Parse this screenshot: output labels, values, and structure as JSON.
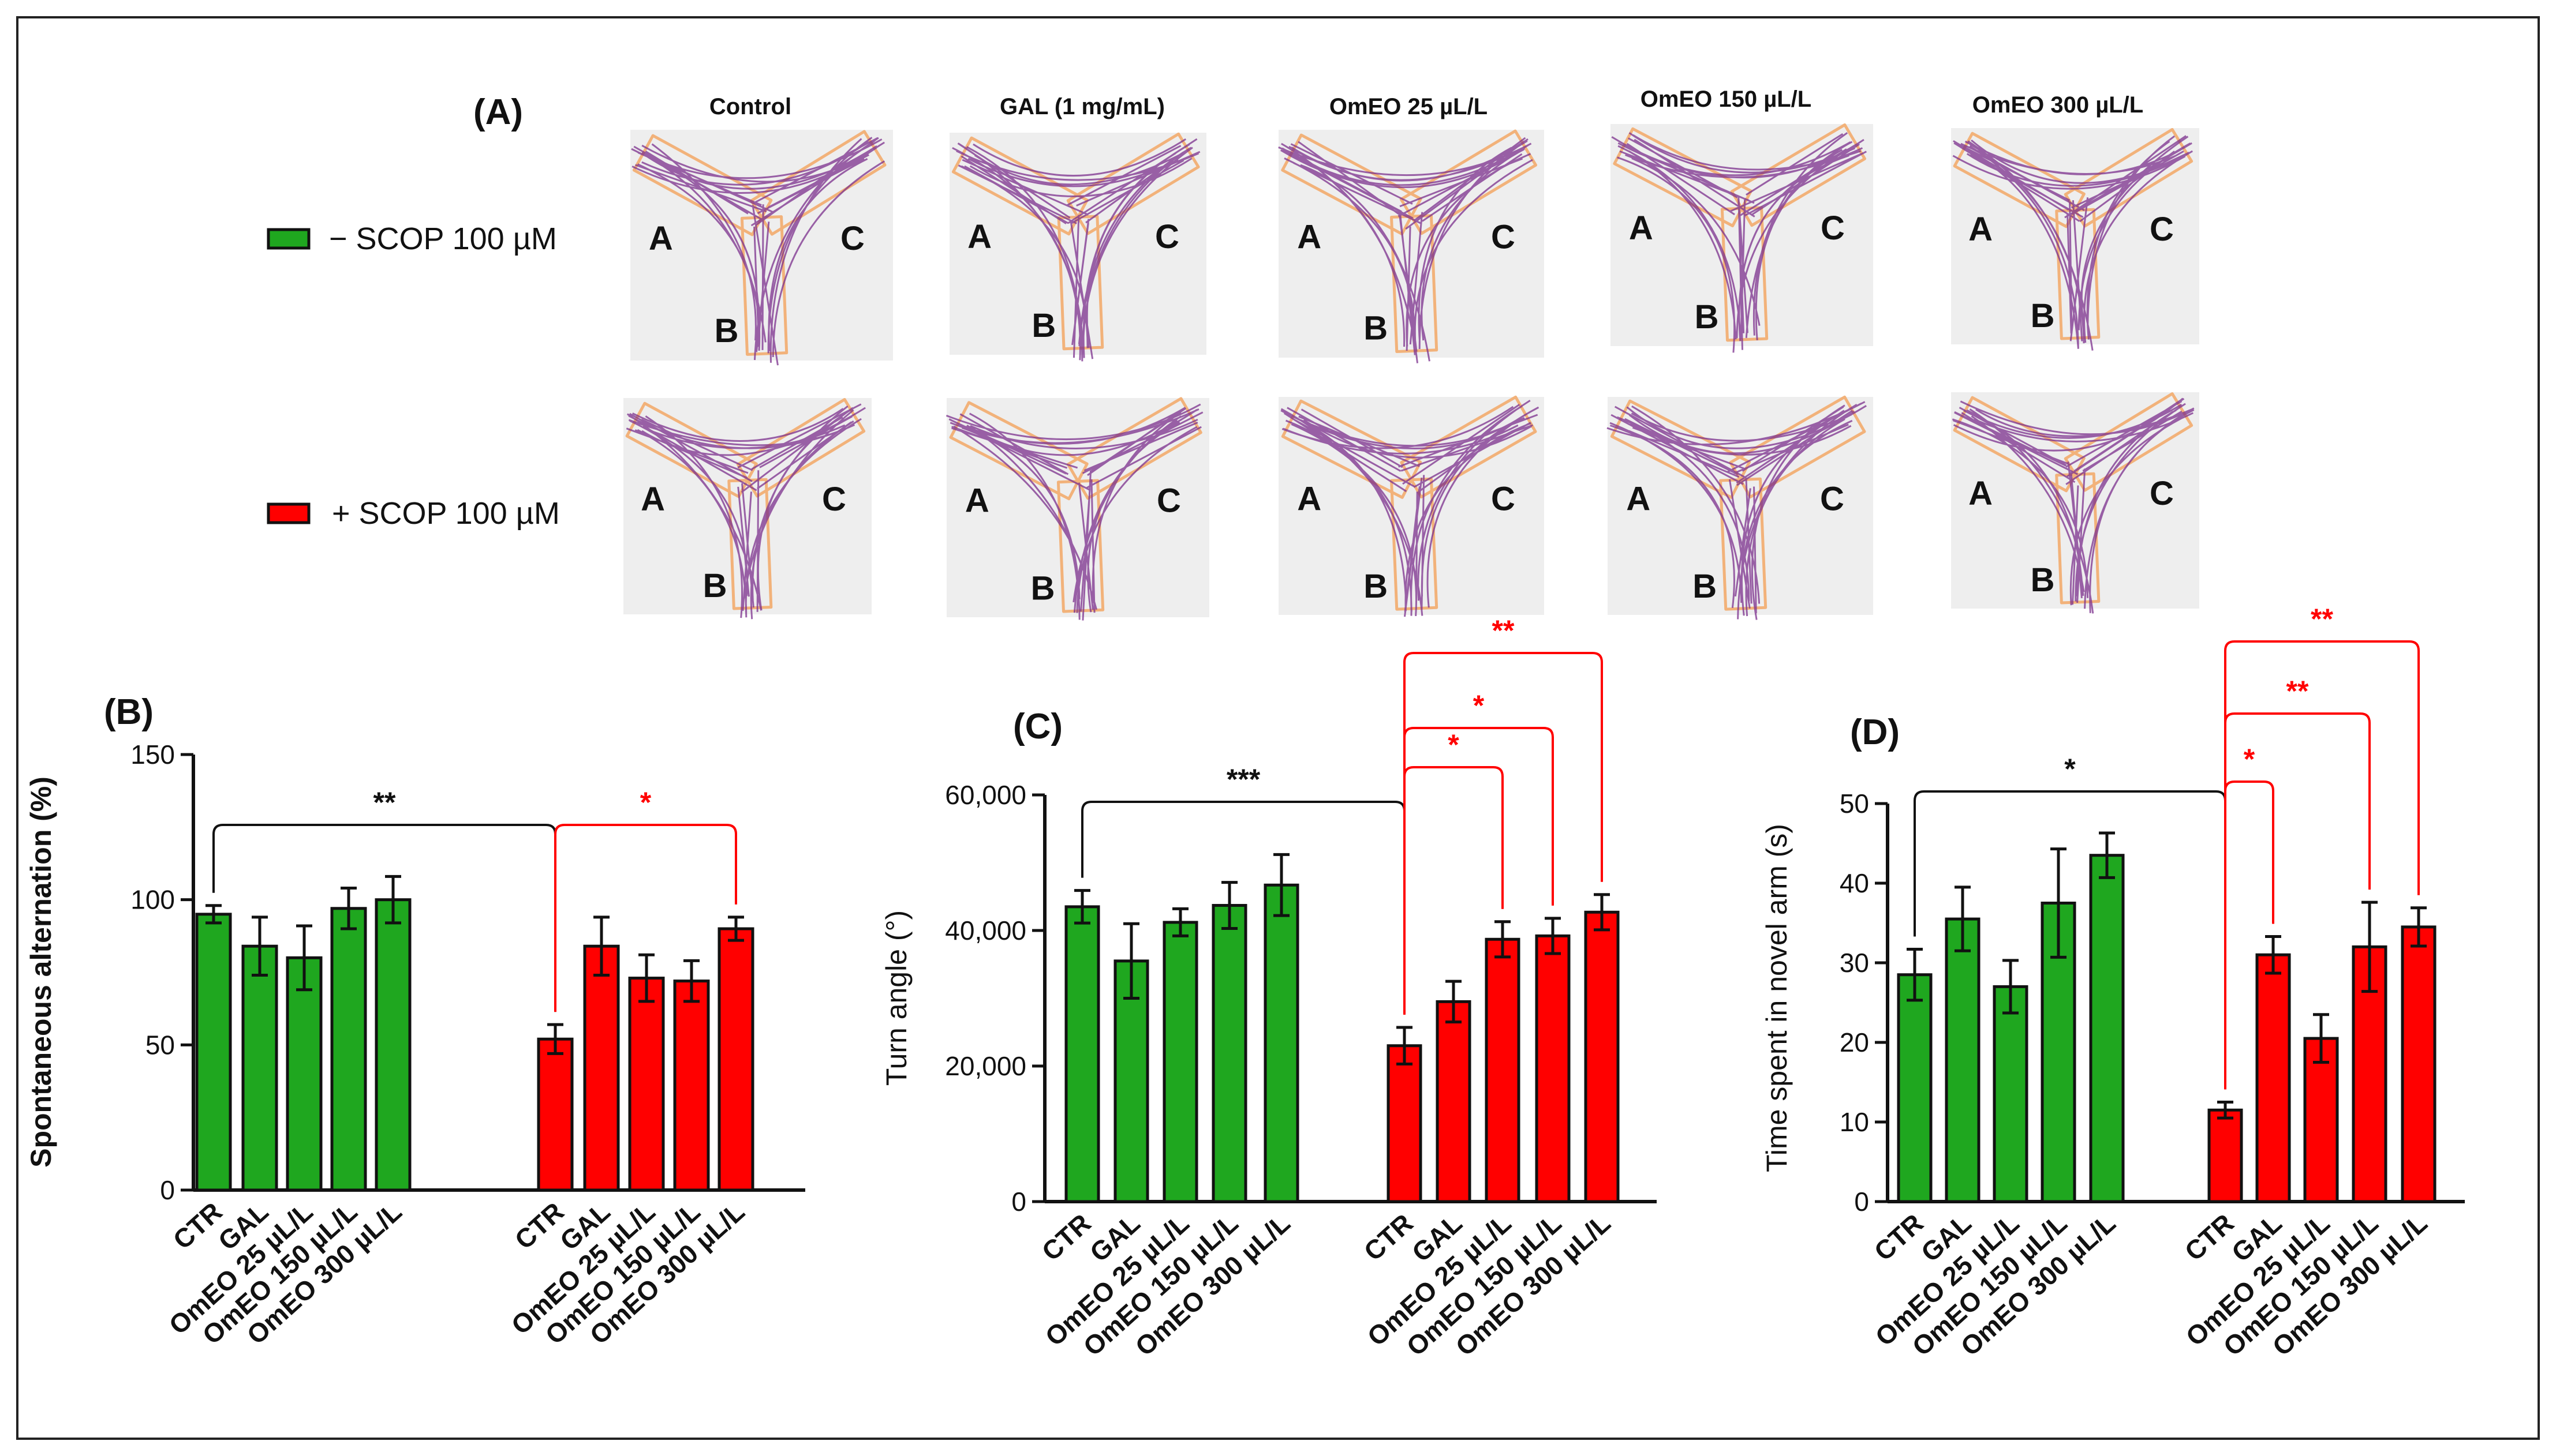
{
  "colors": {
    "green": "#1fa71f",
    "red": "#ff0000",
    "black": "#111111",
    "trace": "#7b2f8c",
    "maze": "#f2b27a"
  },
  "panel_a": {
    "letter": "(A)",
    "columns": [
      "Control",
      "GAL (1 mg/mL)",
      "OmEO 25 µL/L",
      "OmEO 150 µL/L",
      "OmEO 300 µL/L"
    ],
    "rows": [
      {
        "label": "− SCOP 100 µM",
        "color": "#1fa71f"
      },
      {
        "label": "+ SCOP 100 µM",
        "color": "#ff0000"
      }
    ],
    "arms": [
      "A",
      "B",
      "C"
    ]
  },
  "chart_data": [
    {
      "panel": "(B)",
      "type": "bar",
      "title": "",
      "ylabel": "Spontaneous alternation (%)",
      "ylim": [
        0,
        150
      ],
      "yticks": [
        0,
        50,
        100,
        150
      ],
      "ytick_labels": [
        "0",
        "50",
        "100",
        "150"
      ],
      "series": [
        {
          "name": "− SCOP 100 µM",
          "color": "#1fa71f",
          "categories": [
            "CTR",
            "GAL",
            "OmEO 25 µL/L",
            "OmEO  150 µL/L",
            "OmEO  300 µL/L"
          ],
          "values": [
            95,
            84,
            80,
            97,
            100
          ],
          "errors": [
            3,
            10,
            11,
            7,
            8
          ]
        },
        {
          "name": "+ SCOP 100 µM",
          "color": "#ff0000",
          "categories": [
            "CTR",
            "GAL",
            "OmEO 25 µL/L",
            "OmEO  150 µL/L",
            "OmEO  300 µL/L"
          ],
          "values": [
            52,
            84,
            73,
            72,
            90
          ],
          "errors": [
            5,
            10,
            8,
            7,
            4
          ]
        }
      ],
      "significance": [
        {
          "label": "**",
          "from": [
            0,
            0
          ],
          "to": [
            1,
            0
          ],
          "color": "#111111"
        },
        {
          "label": "*",
          "from": [
            1,
            0
          ],
          "to": [
            1,
            4
          ],
          "color": "#ff0000"
        }
      ]
    },
    {
      "panel": "(C)",
      "type": "bar",
      "title": "",
      "ylabel": "Turn angle (°)",
      "ylim": [
        0,
        60000
      ],
      "yticks": [
        0,
        20000,
        40000,
        60000
      ],
      "ytick_labels": [
        "0",
        "20,000",
        "40,000",
        "60,000"
      ],
      "series": [
        {
          "name": "− SCOP 100 µM",
          "color": "#1fa71f",
          "categories": [
            "CTR",
            "GAL",
            "OmEO 25 µL/L",
            "OmEO 150 µL/L",
            "OmEO 300 µL/L"
          ],
          "values": [
            43500,
            35500,
            41200,
            43700,
            46700
          ],
          "errors": [
            2400,
            5500,
            2000,
            3400,
            4500
          ]
        },
        {
          "name": "+ SCOP 100 µM",
          "color": "#ff0000",
          "categories": [
            "CTR",
            "GAL",
            "OmEO 25 µL/L",
            "OmEO 150 µL/L",
            "OmEO 300 µL/L"
          ],
          "values": [
            23000,
            29500,
            38700,
            39200,
            42700
          ],
          "errors": [
            2700,
            3000,
            2600,
            2600,
            2600
          ]
        }
      ],
      "significance": [
        {
          "label": "***",
          "from": [
            0,
            0
          ],
          "to": [
            1,
            0
          ],
          "color": "#111111"
        },
        {
          "label": "*",
          "from": [
            1,
            0
          ],
          "to": [
            1,
            2
          ],
          "color": "#ff0000"
        },
        {
          "label": "*",
          "from": [
            1,
            0
          ],
          "to": [
            1,
            3
          ],
          "color": "#ff0000"
        },
        {
          "label": "**",
          "from": [
            1,
            0
          ],
          "to": [
            1,
            4
          ],
          "color": "#ff0000"
        }
      ]
    },
    {
      "panel": "(D)",
      "type": "bar",
      "title": "",
      "ylabel": "Time spent in novel arm (s)",
      "ylim": [
        0,
        50
      ],
      "yticks": [
        0,
        10,
        20,
        30,
        40,
        50
      ],
      "ytick_labels": [
        "0",
        "10",
        "20",
        "30",
        "40",
        "50"
      ],
      "series": [
        {
          "name": "− SCOP 100 µM",
          "color": "#1fa71f",
          "categories": [
            "CTR",
            "GAL",
            "OmEO 25 µL/L",
            "OmEO 150 µL/L",
            "OmEO 300 µL/L"
          ],
          "values": [
            28.5,
            35.5,
            27,
            37.5,
            43.5
          ],
          "errors": [
            3.2,
            4,
            3.3,
            6.8,
            2.8
          ]
        },
        {
          "name": "+ SCOP 100 µM",
          "color": "#ff0000",
          "categories": [
            "CTR",
            "GAL",
            "OmEO 25 µL/L",
            "OmEO 150 µL/L",
            "OmEO 300 µL/L"
          ],
          "values": [
            11.5,
            31,
            20.5,
            32,
            34.5
          ],
          "errors": [
            1,
            2.3,
            3,
            5.6,
            2.4
          ]
        }
      ],
      "significance": [
        {
          "label": "*",
          "from": [
            0,
            0
          ],
          "to": [
            1,
            0
          ],
          "color": "#111111"
        },
        {
          "label": "*",
          "from": [
            1,
            0
          ],
          "to": [
            1,
            1
          ],
          "color": "#ff0000"
        },
        {
          "label": "**",
          "from": [
            1,
            0
          ],
          "to": [
            1,
            3
          ],
          "color": "#ff0000"
        },
        {
          "label": "**",
          "from": [
            1,
            0
          ],
          "to": [
            1,
            4
          ],
          "color": "#ff0000"
        }
      ]
    }
  ]
}
